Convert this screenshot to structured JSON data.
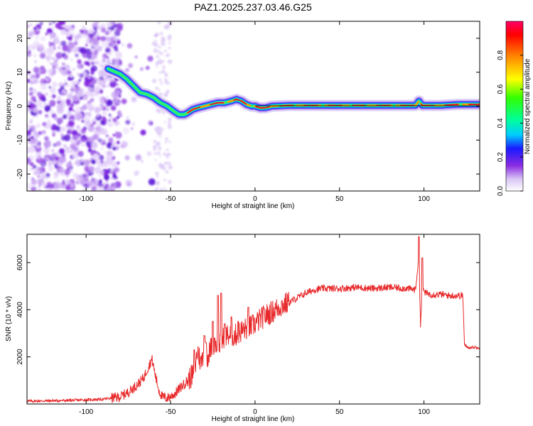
{
  "figure_title": "PAZ1.2025.237.03.46.G25",
  "colors": {
    "snr_line": "#e8292b",
    "axis": "#000000"
  },
  "chart_data": [
    {
      "type": "heatmap",
      "name": "spectrogram",
      "title": "PAZ1.2025.237.03.46.G25",
      "xlabel": "Height of straight line (km)",
      "ylabel": "Frequency (Hz)",
      "xlim": [
        -135,
        133
      ],
      "ylim": [
        -25,
        25
      ],
      "xticks": [
        -100,
        -50,
        0,
        50,
        100
      ],
      "yticks": [
        -20,
        -10,
        0,
        10,
        20
      ],
      "ridge": {
        "description": "dominant frequency vs height",
        "x": [
          -87,
          -80,
          -76,
          -72,
          -68,
          -64,
          -60,
          -56,
          -52,
          -48,
          -45,
          -42,
          -40,
          -37,
          -34,
          -30,
          -26,
          -22,
          -18,
          -14,
          -11,
          -8,
          -5,
          -2,
          0,
          3,
          6,
          10,
          20,
          40,
          60,
          80,
          95,
          97,
          99,
          110,
          120,
          133
        ],
        "y": [
          11,
          9.5,
          8,
          6,
          4,
          3.5,
          2.5,
          1,
          0,
          -1.5,
          -2.5,
          -2.5,
          -2,
          -1,
          -0.5,
          0,
          0.5,
          1,
          1,
          1.5,
          2,
          1.5,
          0.5,
          0,
          0,
          -0.5,
          -0.5,
          0,
          0.2,
          0.2,
          0.2,
          0.2,
          0.2,
          1.5,
          0.2,
          0.2,
          0.5,
          0.5
        ]
      },
      "colorbar": {
        "label": "Normalized spectral amplitude",
        "range": [
          0,
          1
        ],
        "ticks": [
          "0.0",
          "0.2",
          "0.4",
          "0.6",
          "0.8"
        ],
        "tick_values": [
          0,
          0.2,
          0.4,
          0.6,
          0.8
        ]
      }
    },
    {
      "type": "line",
      "name": "snr",
      "xlabel": "Height of straight line (km)",
      "ylabel": "SNR (10 * v/v)",
      "xlim": [
        -135,
        133
      ],
      "ylim": [
        0,
        7200
      ],
      "xticks": [
        -100,
        -50,
        0,
        50,
        100
      ],
      "yticks": [
        2000,
        4000,
        6000
      ],
      "series": [
        {
          "name": "SNR",
          "x": [
            -135,
            -110,
            -90,
            -80,
            -75,
            -70,
            -66,
            -63,
            -61,
            -59,
            -57,
            -55,
            -52,
            -48,
            -44,
            -40,
            -36,
            -34,
            -32,
            -30,
            -28,
            -25,
            -22,
            -20,
            -18,
            -15,
            -12,
            -8,
            -5,
            -2,
            0,
            5,
            10,
            15,
            20,
            25,
            30,
            35,
            40,
            45,
            50,
            60,
            70,
            80,
            90,
            95,
            97,
            98,
            99,
            101,
            105,
            110,
            115,
            120,
            123,
            124,
            126,
            130,
            133
          ],
          "y": [
            120,
            150,
            200,
            300,
            500,
            800,
            1100,
            1600,
            1900,
            1200,
            600,
            300,
            250,
            400,
            700,
            1000,
            1300,
            2300,
            1700,
            2400,
            2000,
            2600,
            2500,
            2600,
            2900,
            2900,
            2900,
            3100,
            3200,
            3300,
            3400,
            3700,
            3900,
            4150,
            4300,
            4500,
            4700,
            4850,
            4900,
            4900,
            4900,
            4950,
            4900,
            4950,
            4900,
            4850,
            6300,
            3300,
            4900,
            4700,
            4650,
            4650,
            4600,
            4600,
            4600,
            2500,
            2400,
            2400,
            2400
          ]
        }
      ]
    }
  ]
}
